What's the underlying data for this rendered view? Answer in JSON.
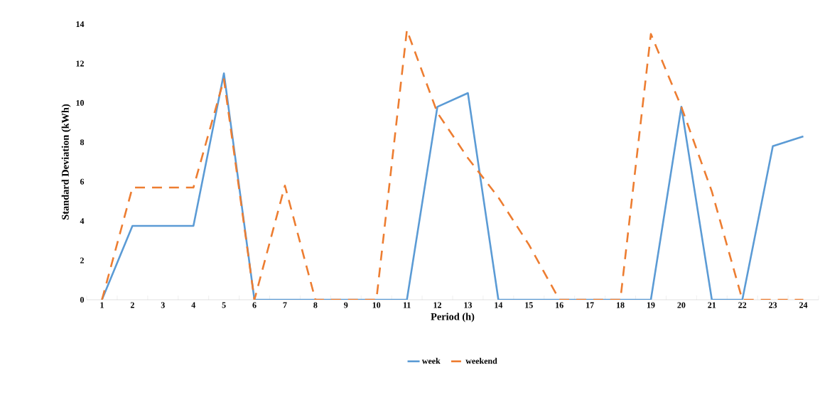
{
  "chart_data": {
    "type": "line",
    "xlabel": "Period (h)",
    "ylabel": "Standard Deviation (kWh)",
    "categories": [
      "1",
      "2",
      "3",
      "4",
      "5",
      "6",
      "7",
      "8",
      "9",
      "10",
      "11",
      "12",
      "13",
      "14",
      "15",
      "16",
      "17",
      "18",
      "19",
      "20",
      "21",
      "22",
      "23",
      "24"
    ],
    "series": [
      {
        "name": "week",
        "color": "#5b9bd5",
        "line_style": "solid",
        "values": [
          0,
          3.75,
          3.75,
          3.75,
          11.5,
          0,
          0,
          0,
          0,
          0,
          0,
          9.8,
          10.5,
          0,
          0,
          0,
          0,
          0,
          0,
          9.8,
          0,
          0,
          7.8,
          8.3
        ]
      },
      {
        "name": "weekend",
        "color": "#ed7d31",
        "line_style": "dashed",
        "values": [
          0,
          5.7,
          5.7,
          5.7,
          11.2,
          0,
          5.8,
          0,
          0,
          0,
          13.7,
          9.5,
          7.2,
          5.2,
          2.8,
          0,
          0,
          0,
          13.5,
          9.8,
          5.5,
          0,
          0,
          0
        ]
      }
    ],
    "ylim": [
      0,
      14
    ],
    "yticks": [
      0,
      2,
      4,
      6,
      8,
      10,
      12,
      14
    ],
    "legend": "bottom",
    "grid": false
  }
}
